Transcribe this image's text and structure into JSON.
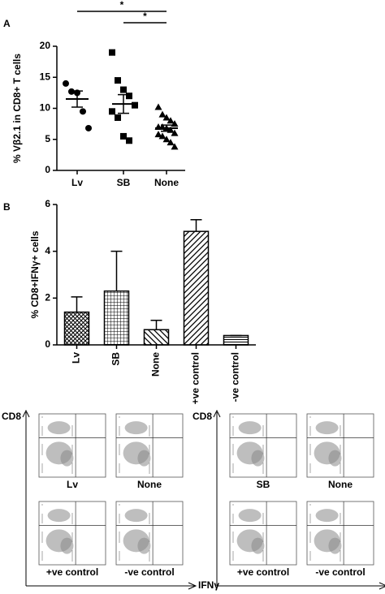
{
  "chart_data": [
    {
      "type": "dotplot",
      "panel_label": "A",
      "y_label": "% Vβ2.1 in CD8+ T cells",
      "categories": [
        "Lv",
        "SB",
        "None"
      ],
      "groups": [
        [
          14,
          12.7,
          12.5,
          9.5,
          6.8
        ],
        [
          19,
          14.5,
          13,
          12,
          10.5,
          9.5,
          8.5,
          5.5,
          4.8
        ],
        [
          10.2,
          9,
          8.5,
          8,
          7.5,
          7,
          7,
          6.8,
          6.5,
          6,
          5.8,
          5.5,
          5,
          4.5,
          3.8
        ]
      ],
      "markers": [
        "circle",
        "square",
        "triangle"
      ],
      "color": "#000000",
      "means": [
        11.5,
        10.7,
        6.8
      ],
      "sems": [
        1.3,
        1.5,
        0.5
      ],
      "ylim": [
        0,
        20
      ],
      "yticks": [
        0,
        5,
        10,
        15,
        20
      ],
      "annotations": [
        "*",
        "*"
      ]
    },
    {
      "type": "bar",
      "panel_label": "B",
      "y_label": "% CD8+IFNγ+ cells",
      "categories": [
        "Lv",
        "SB",
        "None",
        "+ve control",
        "-ve control"
      ],
      "values": [
        1.4,
        2.3,
        0.65,
        4.85,
        0.4
      ],
      "errors": [
        0.65,
        1.7,
        0.4,
        0.5,
        0
      ],
      "patterns": [
        "crosshatch",
        "grid",
        "backdiag",
        "fwddiag",
        "hlines"
      ],
      "ylim": [
        0,
        6
      ],
      "yticks": [
        0,
        2,
        4,
        6
      ]
    },
    {
      "type": "flow",
      "y_label": "CD8",
      "x_label": "IFNγ",
      "panels": [
        {
          "labels": [
            "Lv",
            "None",
            "+ve control",
            "-ve control"
          ]
        },
        {
          "labels": [
            "SB",
            "None",
            "+ve control",
            "-ve control"
          ]
        }
      ]
    }
  ]
}
